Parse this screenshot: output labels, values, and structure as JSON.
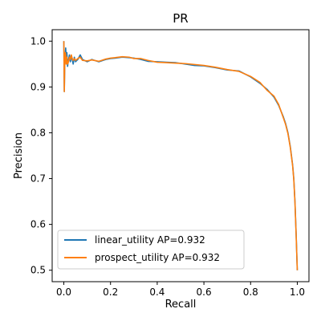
{
  "chart_data": {
    "type": "line",
    "title": "PR",
    "xlabel": "Recall",
    "ylabel": "Precision",
    "xlim": [
      -0.05,
      1.05
    ],
    "ylim": [
      0.475,
      1.025
    ],
    "xticks": [
      "0.0",
      "0.2",
      "0.4",
      "0.6",
      "0.8",
      "1.0"
    ],
    "yticks": [
      "0.5",
      "0.6",
      "0.7",
      "0.8",
      "0.9",
      "1.0"
    ],
    "grid": false,
    "legend_position": "lower-left",
    "series": [
      {
        "name": "linear_utility AP=0.932",
        "color": "#1f77b4",
        "x": [
          0.0,
          0.002,
          0.004,
          0.006,
          0.008,
          0.01,
          0.013,
          0.016,
          0.02,
          0.024,
          0.028,
          0.032,
          0.036,
          0.04,
          0.045,
          0.05,
          0.06,
          0.07,
          0.08,
          0.1,
          0.12,
          0.15,
          0.18,
          0.2,
          0.22,
          0.25,
          0.28,
          0.3,
          0.33,
          0.36,
          0.4,
          0.44,
          0.48,
          0.52,
          0.56,
          0.6,
          0.65,
          0.7,
          0.75,
          0.8,
          0.84,
          0.87,
          0.9,
          0.92,
          0.94,
          0.95,
          0.96,
          0.97,
          0.98,
          0.985,
          0.99,
          0.995,
          1.0
        ],
        "y": [
          1.0,
          0.89,
          0.95,
          0.97,
          0.985,
          0.96,
          0.975,
          0.945,
          0.96,
          0.97,
          0.955,
          0.965,
          0.96,
          0.95,
          0.965,
          0.955,
          0.96,
          0.97,
          0.96,
          0.955,
          0.96,
          0.955,
          0.96,
          0.962,
          0.963,
          0.965,
          0.964,
          0.963,
          0.96,
          0.956,
          0.955,
          0.954,
          0.953,
          0.95,
          0.947,
          0.946,
          0.942,
          0.937,
          0.935,
          0.922,
          0.908,
          0.895,
          0.878,
          0.86,
          0.835,
          0.82,
          0.8,
          0.77,
          0.73,
          0.7,
          0.65,
          0.58,
          0.5
        ]
      },
      {
        "name": "prospect_utility AP=0.932",
        "color": "#ff7f0e",
        "x": [
          0.0,
          0.002,
          0.004,
          0.006,
          0.008,
          0.01,
          0.013,
          0.016,
          0.02,
          0.024,
          0.028,
          0.032,
          0.036,
          0.04,
          0.045,
          0.05,
          0.06,
          0.07,
          0.08,
          0.1,
          0.12,
          0.15,
          0.18,
          0.2,
          0.22,
          0.25,
          0.28,
          0.3,
          0.33,
          0.36,
          0.4,
          0.44,
          0.48,
          0.52,
          0.56,
          0.6,
          0.65,
          0.7,
          0.75,
          0.8,
          0.84,
          0.87,
          0.9,
          0.92,
          0.94,
          0.95,
          0.96,
          0.97,
          0.98,
          0.985,
          0.99,
          0.995,
          1.0
        ],
        "y": [
          1.0,
          0.89,
          0.96,
          0.975,
          0.97,
          0.95,
          0.965,
          0.95,
          0.955,
          0.965,
          0.96,
          0.97,
          0.962,
          0.958,
          0.962,
          0.958,
          0.962,
          0.965,
          0.958,
          0.957,
          0.959,
          0.956,
          0.961,
          0.963,
          0.964,
          0.966,
          0.965,
          0.962,
          0.962,
          0.958,
          0.954,
          0.953,
          0.952,
          0.951,
          0.949,
          0.947,
          0.943,
          0.938,
          0.934,
          0.923,
          0.91,
          0.893,
          0.88,
          0.862,
          0.833,
          0.818,
          0.798,
          0.768,
          0.728,
          0.698,
          0.648,
          0.578,
          0.5
        ]
      }
    ]
  }
}
